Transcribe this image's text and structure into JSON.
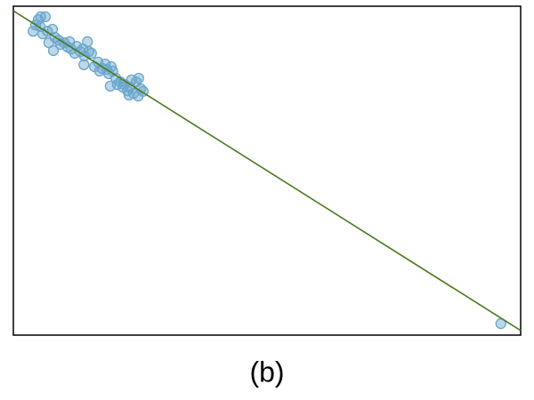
{
  "chart_data": {
    "type": "scatter",
    "title": "(b)",
    "x": [
      3.9,
      4.4,
      4.9,
      5.4,
      6.3,
      5.3,
      5.8,
      6.7,
      7.0,
      7.7,
      8.2,
      7.9,
      8.9,
      9.3,
      10.0,
      10.7,
      11.1,
      11.4,
      12.1,
      12.5,
      13.2,
      13.7,
      14.0,
      14.6,
      14.9,
      15.4,
      13.9,
      16.0,
      16.7,
      17.0,
      17.5,
      18.1,
      18.4,
      18.8,
      19.3,
      19.6,
      20.2,
      19.1,
      20.5,
      21.1,
      21.6,
      21.9,
      22.5,
      23.0,
      23.3,
      23.7,
      24.2,
      24.7,
      25.1,
      25.6,
      22.8,
      24.6,
      96.1
    ],
    "values": [
      92.4,
      94.3,
      95.9,
      96.8,
      96.8,
      93.8,
      91.6,
      92.4,
      88.9,
      93.0,
      90.5,
      86.5,
      89.7,
      88.4,
      88.9,
      87.6,
      89.2,
      87.0,
      85.7,
      87.8,
      86.2,
      87.0,
      84.9,
      89.2,
      86.2,
      85.7,
      82.2,
      81.6,
      83.0,
      80.3,
      81.1,
      82.4,
      80.8,
      79.5,
      81.6,
      80.3,
      78.1,
      75.7,
      76.2,
      77.0,
      75.4,
      76.2,
      74.3,
      75.4,
      77.6,
      73.5,
      77.0,
      78.1,
      74.9,
      74.1,
      73.0,
      72.7,
      3.5
    ],
    "color": "#6aa6cc",
    "fit": {
      "x": [
        0,
        100
      ],
      "y": [
        98.6,
        1.4
      ],
      "color": "#4a7a1e"
    },
    "xlim": [
      0,
      100
    ],
    "ylim": [
      0,
      100
    ]
  }
}
